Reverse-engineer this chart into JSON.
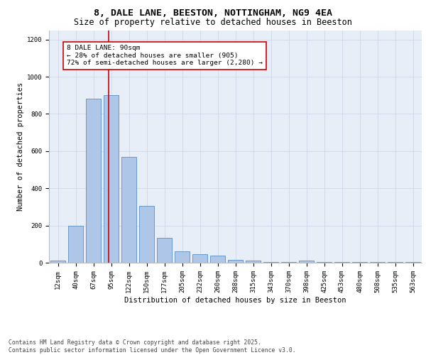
{
  "title": "8, DALE LANE, BEESTON, NOTTINGHAM, NG9 4EA",
  "subtitle": "Size of property relative to detached houses in Beeston",
  "xlabel": "Distribution of detached houses by size in Beeston",
  "ylabel": "Number of detached properties",
  "categories": [
    "12sqm",
    "40sqm",
    "67sqm",
    "95sqm",
    "122sqm",
    "150sqm",
    "177sqm",
    "205sqm",
    "232sqm",
    "260sqm",
    "288sqm",
    "315sqm",
    "343sqm",
    "370sqm",
    "398sqm",
    "425sqm",
    "453sqm",
    "480sqm",
    "508sqm",
    "535sqm",
    "563sqm"
  ],
  "bar_values": [
    10,
    200,
    880,
    900,
    570,
    305,
    135,
    60,
    45,
    40,
    15,
    12,
    5,
    5,
    12,
    5,
    5,
    5,
    5,
    5,
    5
  ],
  "bar_color": "#aec6e8",
  "bar_edge_color": "#5a8fc2",
  "vline_color": "#cc0000",
  "annotation_text": "8 DALE LANE: 90sqm\n← 28% of detached houses are smaller (905)\n72% of semi-detached houses are larger (2,280) →",
  "annotation_box_color": "#cc0000",
  "annotation_bg": "#ffffff",
  "ylim": [
    0,
    1250
  ],
  "yticks": [
    0,
    200,
    400,
    600,
    800,
    1000,
    1200
  ],
  "grid_color": "#d0d8e8",
  "bg_color": "#e8eef8",
  "footer": "Contains HM Land Registry data © Crown copyright and database right 2025.\nContains public sector information licensed under the Open Government Licence v3.0.",
  "title_fontsize": 9.5,
  "subtitle_fontsize": 8.5,
  "tick_fontsize": 6.5,
  "label_fontsize": 7.5,
  "annotation_fontsize": 6.8,
  "footer_fontsize": 5.8
}
